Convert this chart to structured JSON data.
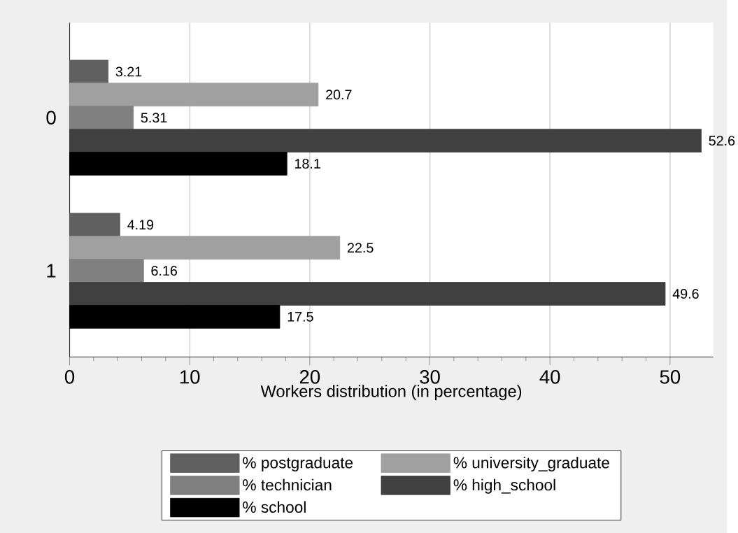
{
  "chart_data": {
    "type": "bar",
    "orientation": "horizontal",
    "xlabel": "Workers distribution (in percentage)",
    "categories": [
      "0",
      "1"
    ],
    "series": [
      {
        "name": "% postgraduate",
        "color": "#606060",
        "values": [
          3.21,
          4.19
        ]
      },
      {
        "name": "% university_graduate",
        "color": "#a0a0a0",
        "values": [
          20.7,
          22.5
        ]
      },
      {
        "name": "% technician",
        "color": "#808080",
        "values": [
          5.31,
          6.16
        ]
      },
      {
        "name": "% high_school",
        "color": "#404040",
        "values": [
          52.6,
          49.6
        ]
      },
      {
        "name": "% school",
        "color": "#000000",
        "values": [
          18.1,
          17.5
        ]
      }
    ],
    "xlim": [
      0,
      53.6
    ],
    "xticks": [
      0,
      10,
      20,
      30,
      40,
      50
    ],
    "grid": "x",
    "legend": "bottom",
    "data_labels": true
  }
}
